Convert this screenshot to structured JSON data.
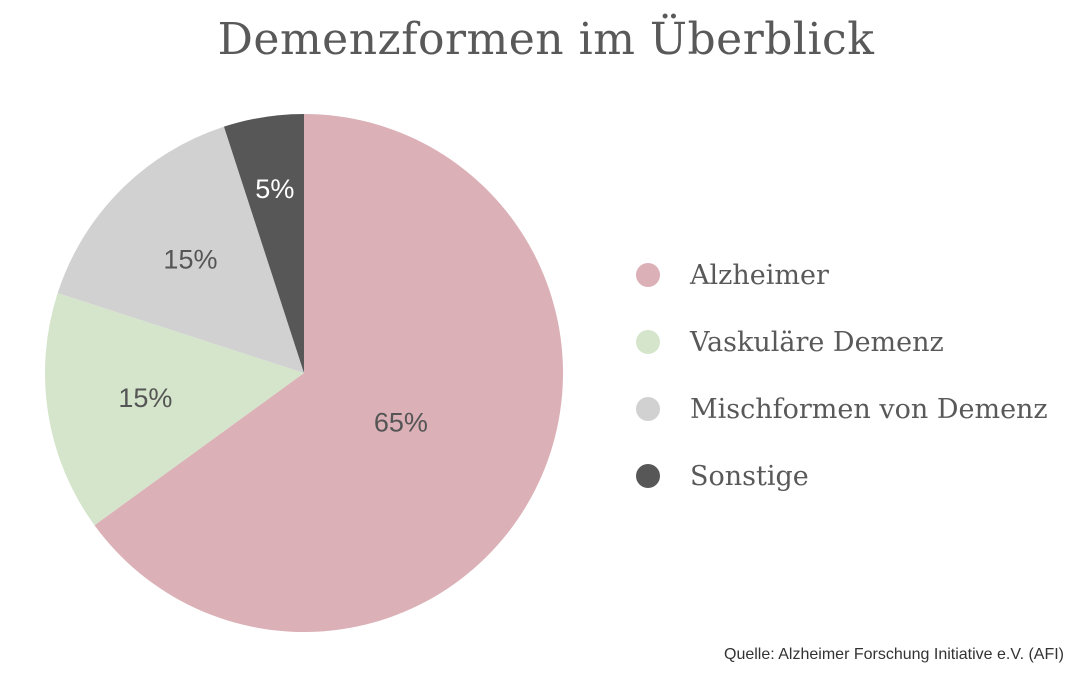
{
  "chart_data": {
    "type": "pie",
    "title": "Demenzformen im Überblick",
    "categories": [
      "Alzheimer",
      "Vaskuläre Demenz",
      "Mischformen von Demenz",
      "Sonstige"
    ],
    "values": [
      65,
      15,
      15,
      5
    ],
    "labels": [
      "65%",
      "15%",
      "15%",
      "5%"
    ],
    "colors": [
      "#dbb0b7",
      "#d5e5cb",
      "#d1d1d1",
      "#575757"
    ],
    "label_colors": [
      "#555555",
      "#555555",
      "#555555",
      "#ffffff"
    ],
    "start": "top",
    "direction": "clockwise",
    "legend_position": "right",
    "source": "Quelle: Alzheimer Forschung Initiative e.V. (AFI)"
  }
}
